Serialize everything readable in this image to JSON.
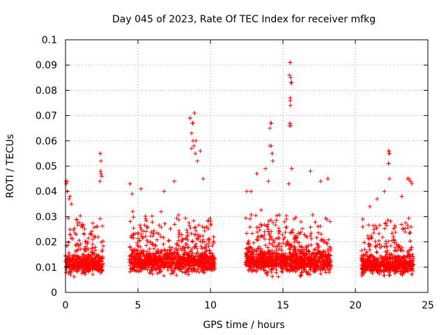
{
  "chart_data": {
    "type": "scatter",
    "title": "Day 045 of 2023, Rate Of TEC Index for receiver mfkg",
    "xlabel": "GPS time / hours",
    "ylabel": "ROTI / TECUs",
    "xlim": [
      0,
      25
    ],
    "ylim": [
      0,
      0.1
    ],
    "xticks": [
      "0",
      "5",
      "10",
      "15",
      "20",
      "25"
    ],
    "yticks": [
      "0",
      "0.01",
      "0.02",
      "0.03",
      "0.04",
      "0.05",
      "0.06",
      "0.07",
      "0.08",
      "0.09",
      "0.1"
    ],
    "grid": true,
    "marker": "+",
    "series_color": "#ff0000",
    "series": [
      {
        "name": "ROTI",
        "segments": [
          {
            "x_start": 0.0,
            "x_end": 2.6,
            "base": 0.011,
            "spread": 0.006,
            "peak_x": [
              0.1,
              0.3,
              2.4,
              2.45
            ],
            "peak_y": [
              0.044,
              0.038,
              0.055,
              0.047
            ]
          },
          {
            "x_start": 4.4,
            "x_end": 10.3,
            "base": 0.012,
            "spread": 0.007,
            "peak_x": [
              8.6,
              8.8,
              8.9,
              9.0,
              8.7
            ],
            "peak_y": [
              0.069,
              0.067,
              0.071,
              0.06,
              0.057
            ]
          },
          {
            "x_start": 12.4,
            "x_end": 18.3,
            "base": 0.012,
            "spread": 0.007,
            "peak_x": [
              15.5,
              15.55,
              15.6,
              15.5,
              15.45,
              14.2,
              14.1
            ],
            "peak_y": [
              0.091,
              0.085,
              0.083,
              0.076,
              0.066,
              0.067,
              0.058
            ]
          },
          {
            "x_start": 20.4,
            "x_end": 24.0,
            "base": 0.011,
            "spread": 0.006,
            "peak_x": [
              22.3,
              22.35,
              22.3,
              23.7,
              23.8
            ],
            "peak_y": [
              0.056,
              0.055,
              0.051,
              0.045,
              0.044
            ]
          }
        ],
        "points": [
          [
            0.02,
            0.044
          ],
          [
            0.05,
            0.043
          ],
          [
            0.12,
            0.04
          ],
          [
            0.25,
            0.037
          ],
          [
            0.4,
            0.035
          ],
          [
            2.4,
            0.055
          ],
          [
            2.45,
            0.052
          ],
          [
            2.42,
            0.048
          ],
          [
            2.5,
            0.046
          ],
          [
            2.38,
            0.044
          ],
          [
            4.45,
            0.043
          ],
          [
            4.6,
            0.039
          ],
          [
            5.2,
            0.041
          ],
          [
            6.8,
            0.04
          ],
          [
            7.5,
            0.044
          ],
          [
            8.6,
            0.069
          ],
          [
            8.75,
            0.067
          ],
          [
            8.9,
            0.071
          ],
          [
            8.7,
            0.063
          ],
          [
            8.8,
            0.06
          ],
          [
            8.85,
            0.058
          ],
          [
            8.95,
            0.055
          ],
          [
            9.1,
            0.052
          ],
          [
            9.3,
            0.056
          ],
          [
            9.5,
            0.045
          ],
          [
            12.5,
            0.04
          ],
          [
            12.8,
            0.04
          ],
          [
            13.2,
            0.047
          ],
          [
            13.8,
            0.049
          ],
          [
            14.0,
            0.044
          ],
          [
            14.15,
            0.067
          ],
          [
            14.1,
            0.065
          ],
          [
            14.2,
            0.058
          ],
          [
            14.25,
            0.055
          ],
          [
            14.3,
            0.052
          ],
          [
            15.5,
            0.091
          ],
          [
            15.45,
            0.086
          ],
          [
            15.55,
            0.083
          ],
          [
            15.5,
            0.077
          ],
          [
            15.52,
            0.074
          ],
          [
            15.48,
            0.067
          ],
          [
            15.55,
            0.066
          ],
          [
            15.6,
            0.049
          ],
          [
            15.4,
            0.043
          ],
          [
            16.9,
            0.048
          ],
          [
            17.6,
            0.044
          ],
          [
            18.1,
            0.045
          ],
          [
            20.5,
            0.029
          ],
          [
            21.0,
            0.034
          ],
          [
            21.5,
            0.037
          ],
          [
            22.0,
            0.04
          ],
          [
            22.3,
            0.056
          ],
          [
            22.32,
            0.055
          ],
          [
            22.28,
            0.051
          ],
          [
            22.35,
            0.045
          ],
          [
            23.6,
            0.045
          ],
          [
            23.8,
            0.044
          ],
          [
            23.9,
            0.043
          ],
          [
            23.2,
            0.038
          ]
        ]
      }
    ]
  }
}
